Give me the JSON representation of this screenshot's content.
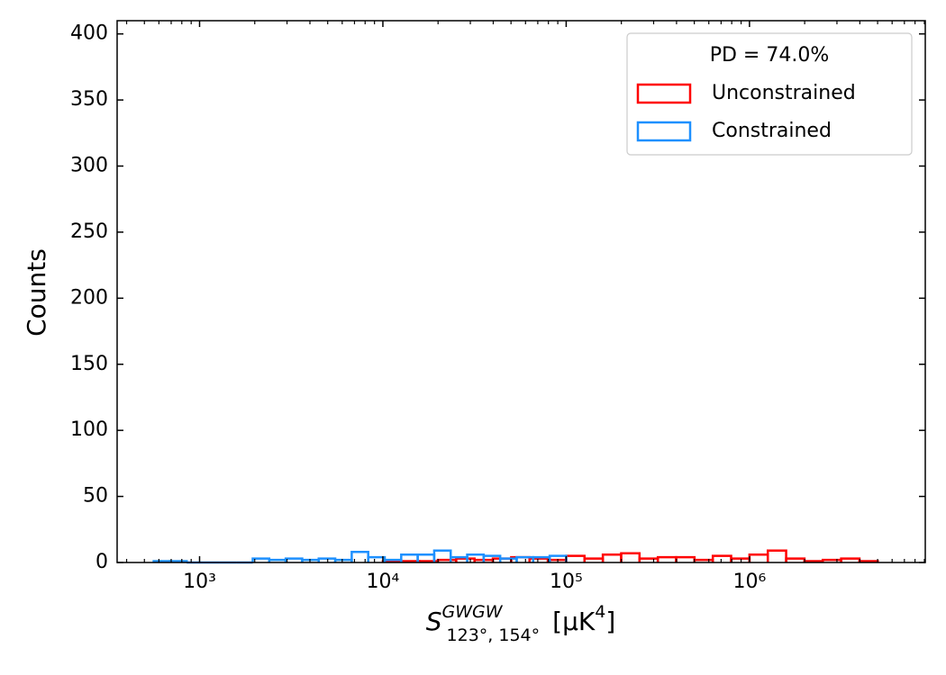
{
  "chart_data": {
    "type": "histogram",
    "xlabel": {
      "base": "S",
      "sup": "GWGW",
      "sub": "123°, 154°",
      "unit": "[μK",
      "unit_sup": "4",
      "close": "]"
    },
    "ylabel": "Counts",
    "xscale": "log",
    "xlim": [
      355,
      9100000
    ],
    "ylim": [
      0,
      410
    ],
    "xticks": [
      {
        "value": 1000,
        "label": "10³"
      },
      {
        "value": 10000,
        "label": "10⁴"
      },
      {
        "value": 100000,
        "label": "10⁵"
      },
      {
        "value": 1000000,
        "label": "10⁶"
      }
    ],
    "xminor_ticks": [
      400,
      500,
      600,
      700,
      800,
      900,
      2000,
      3000,
      4000,
      5000,
      6000,
      7000,
      8000,
      9000,
      20000,
      30000,
      40000,
      50000,
      60000,
      70000,
      80000,
      90000,
      200000,
      300000,
      400000,
      500000,
      600000,
      700000,
      800000,
      900000,
      2000000,
      3000000,
      4000000,
      5000000,
      6000000,
      7000000,
      8000000,
      9000000
    ],
    "yticks": [
      0,
      50,
      100,
      150,
      200,
      250,
      300,
      350,
      400
    ],
    "legend": {
      "title": "PD  = 74.0%",
      "loc": "upper right"
    },
    "series": [
      {
        "name": "Unconstrained",
        "color": "#ff0000",
        "bins": [
          10000,
          12589,
          15849,
          19953,
          25119,
          31623,
          39811,
          50119,
          63096,
          79433,
          100000,
          125893,
          158489,
          199526,
          251189,
          316228,
          398107,
          501187,
          630957,
          794328,
          1000000,
          1258925,
          1584893,
          1995262,
          2511886,
          3162278,
          3981072,
          5011872
        ],
        "values": [
          1,
          1,
          1,
          2,
          3,
          2,
          3,
          4,
          3,
          2,
          5,
          3,
          6,
          7,
          3,
          4,
          4,
          2,
          5,
          3,
          6,
          9,
          3,
          1,
          2,
          3,
          1
        ]
      },
      {
        "name": "Constrained",
        "color": "#1e90ff",
        "bins": [
          562,
          692,
          851,
          1047,
          1288,
          1585,
          1950,
          2399,
          2951,
          3631,
          4467,
          5495,
          6761,
          8318,
          10233,
          12589,
          15488,
          19055,
          23442,
          28840,
          35481,
          43652,
          53703,
          66069,
          81283,
          100000
        ],
        "values": [
          1,
          1,
          0,
          0,
          0,
          0,
          3,
          2,
          3,
          2,
          3,
          2,
          8,
          4,
          2,
          6,
          6,
          9,
          4,
          6,
          5,
          3,
          4,
          4,
          5
        ]
      }
    ]
  }
}
